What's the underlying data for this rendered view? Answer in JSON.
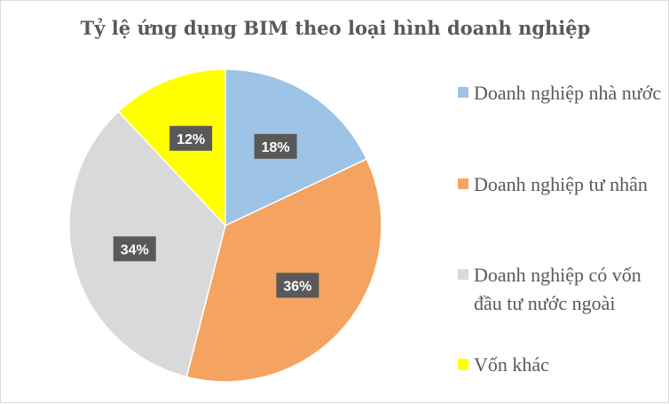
{
  "chart_data": {
    "type": "pie",
    "title": "Tỷ lệ ứng dụng BIM theo loại hình doanh nghiệp",
    "categories": [
      "Doanh nghiệp nhà nước",
      "Doanh nghiệp tư nhân",
      "Doanh nghiệp có vốn đầu tư nước ngoài",
      "Vốn khác"
    ],
    "values": [
      18,
      36,
      34,
      12
    ],
    "data_labels": [
      "18%",
      "36%",
      "34%",
      "12%"
    ],
    "colors": [
      "#9dc3e6",
      "#f4a460",
      "#d9d9d9",
      "#ffff00"
    ],
    "legend_position": "right"
  }
}
